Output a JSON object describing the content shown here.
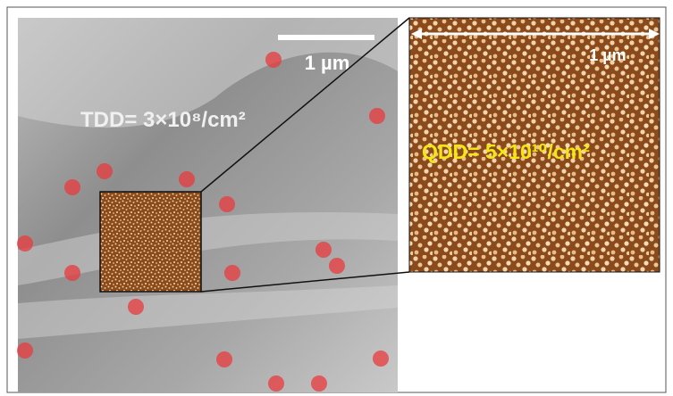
{
  "figure": {
    "left_panel": {
      "scale_bar_label": "1 µm",
      "annotation": "TDD= 3×10⁸/cm²"
    },
    "right_panel": {
      "scale_bar_label": "1 µm",
      "annotation": "QDD= 5×10¹⁰/cm²"
    }
  }
}
